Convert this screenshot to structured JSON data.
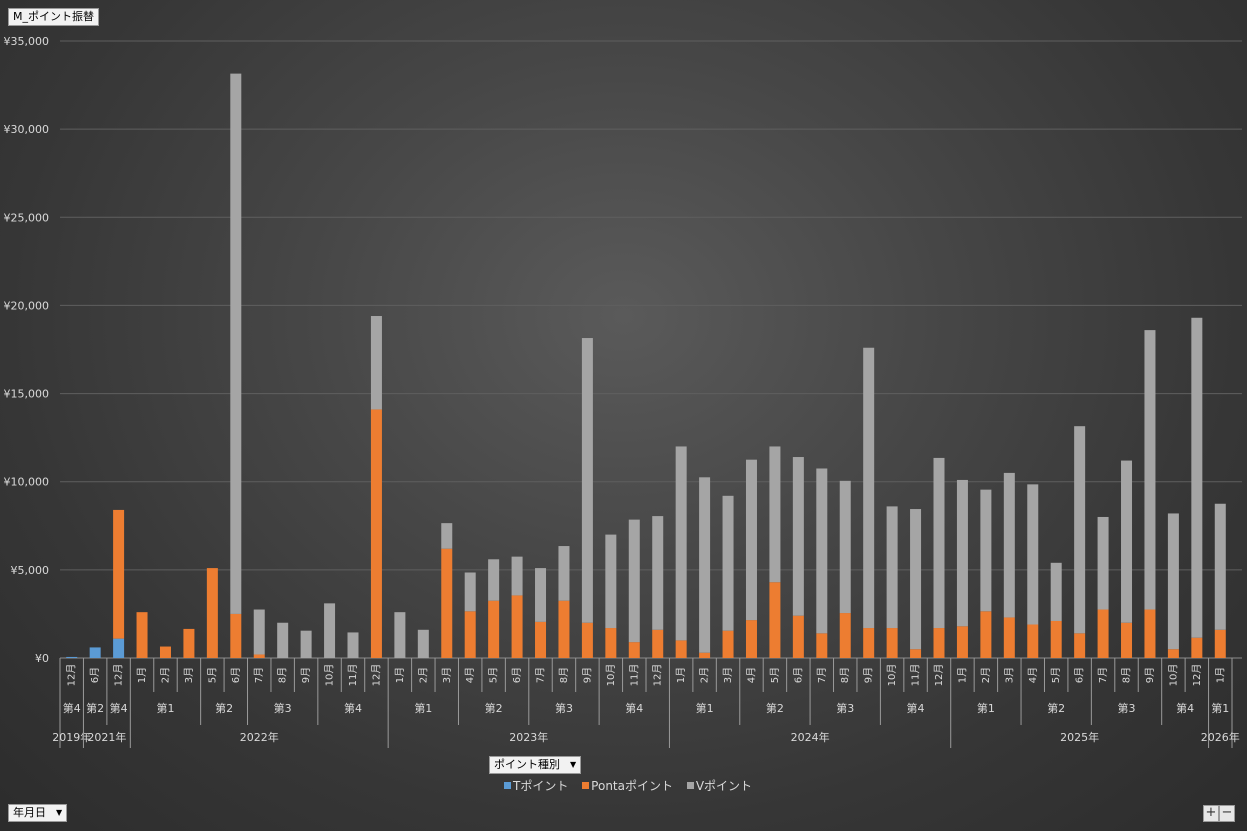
{
  "report_filter_button": {
    "label": "M_ポイント振替"
  },
  "series_field_button": {
    "label": "ポイント種別"
  },
  "axis_field_button": {
    "label": "年月日"
  },
  "zoom": {
    "plus": "+",
    "minus": "−"
  },
  "colors": {
    "T": "#5b9bd5",
    "Ponta": "#ed7d31",
    "V": "#a5a5a5"
  },
  "chart_data": {
    "type": "bar",
    "stacked": true,
    "ylim": [
      0,
      35000
    ],
    "yticks": [
      "¥0",
      "¥5,000",
      "¥10,000",
      "¥15,000",
      "¥20,000",
      "¥25,000",
      "¥30,000",
      "¥35,000"
    ],
    "grid": true,
    "legend_position": "bottom",
    "categories": [
      "12月",
      "6月",
      "12月",
      "1月",
      "2月",
      "3月",
      "5月",
      "6月",
      "7月",
      "8月",
      "9月",
      "10月",
      "11月",
      "12月",
      "1月",
      "2月",
      "3月",
      "4月",
      "5月",
      "6月",
      "7月",
      "8月",
      "9月",
      "10月",
      "11月",
      "12月",
      "1月",
      "2月",
      "3月",
      "4月",
      "5月",
      "6月",
      "7月",
      "8月",
      "9月",
      "10月",
      "11月",
      "12月",
      "1月",
      "2月",
      "3月",
      "4月",
      "5月",
      "6月",
      "7月",
      "8月",
      "9月",
      "10月",
      "12月",
      "1月"
    ],
    "quarters": [
      {
        "label": "第4",
        "count": 1
      },
      {
        "label": "第2",
        "count": 1
      },
      {
        "label": "第4",
        "count": 1
      },
      {
        "label": "第1",
        "count": 3
      },
      {
        "label": "第2",
        "count": 2
      },
      {
        "label": "第3",
        "count": 3
      },
      {
        "label": "第4",
        "count": 3
      },
      {
        "label": "第1",
        "count": 3
      },
      {
        "label": "第2",
        "count": 3
      },
      {
        "label": "第3",
        "count": 3
      },
      {
        "label": "第4",
        "count": 3
      },
      {
        "label": "第1",
        "count": 3
      },
      {
        "label": "第2",
        "count": 3
      },
      {
        "label": "第3",
        "count": 3
      },
      {
        "label": "第4",
        "count": 3
      },
      {
        "label": "第1",
        "count": 3
      },
      {
        "label": "第2",
        "count": 3
      },
      {
        "label": "第3",
        "count": 3
      },
      {
        "label": "第4",
        "count": 2
      },
      {
        "label": "第1",
        "count": 1
      }
    ],
    "years": [
      {
        "label": "2019年",
        "count": 1
      },
      {
        "label": "2021年",
        "count": 2
      },
      {
        "label": "2022年",
        "count": 11
      },
      {
        "label": "2023年",
        "count": 12
      },
      {
        "label": "2024年",
        "count": 12
      },
      {
        "label": "2025年",
        "count": 11
      },
      {
        "label": "2026年",
        "count": 1
      }
    ],
    "series": [
      {
        "name": "Tポイント",
        "key": "T",
        "values": [
          60,
          600,
          1100,
          0,
          0,
          0,
          0,
          0,
          0,
          0,
          0,
          0,
          0,
          0,
          0,
          0,
          0,
          0,
          0,
          0,
          0,
          0,
          0,
          0,
          0,
          0,
          0,
          0,
          0,
          0,
          0,
          0,
          0,
          0,
          0,
          0,
          0,
          0,
          0,
          0,
          0,
          0,
          0,
          0,
          0,
          0,
          0,
          0,
          0,
          0
        ]
      },
      {
        "name": "Pontaポイント",
        "key": "Ponta",
        "values": [
          0,
          0,
          7300,
          2600,
          650,
          1650,
          5100,
          2500,
          200,
          0,
          0,
          0,
          0,
          14100,
          0,
          0,
          6200,
          2650,
          3250,
          3550,
          2050,
          3250,
          2000,
          1700,
          900,
          1600,
          1000,
          300,
          1550,
          2150,
          4300,
          2400,
          1400,
          2550,
          1700,
          1700,
          500,
          1700,
          1800,
          2650,
          2300,
          1900,
          2100,
          1400,
          2750,
          2000,
          2750,
          500,
          1150,
          1600
        ]
      },
      {
        "name": "Vポイント",
        "key": "V",
        "values": [
          0,
          0,
          0,
          0,
          0,
          0,
          0,
          30650,
          2550,
          2000,
          1550,
          3100,
          1450,
          5300,
          2600,
          1600,
          1450,
          2200,
          2350,
          2200,
          3050,
          3100,
          16150,
          5300,
          6950,
          6450,
          11000,
          9950,
          7650,
          9100,
          7700,
          9000,
          9350,
          7500,
          15900,
          6900,
          7950,
          9650,
          8300,
          6900,
          8200,
          7950,
          3300,
          11750,
          5250,
          9200,
          15850,
          7700,
          18150,
          7150
        ]
      }
    ]
  }
}
